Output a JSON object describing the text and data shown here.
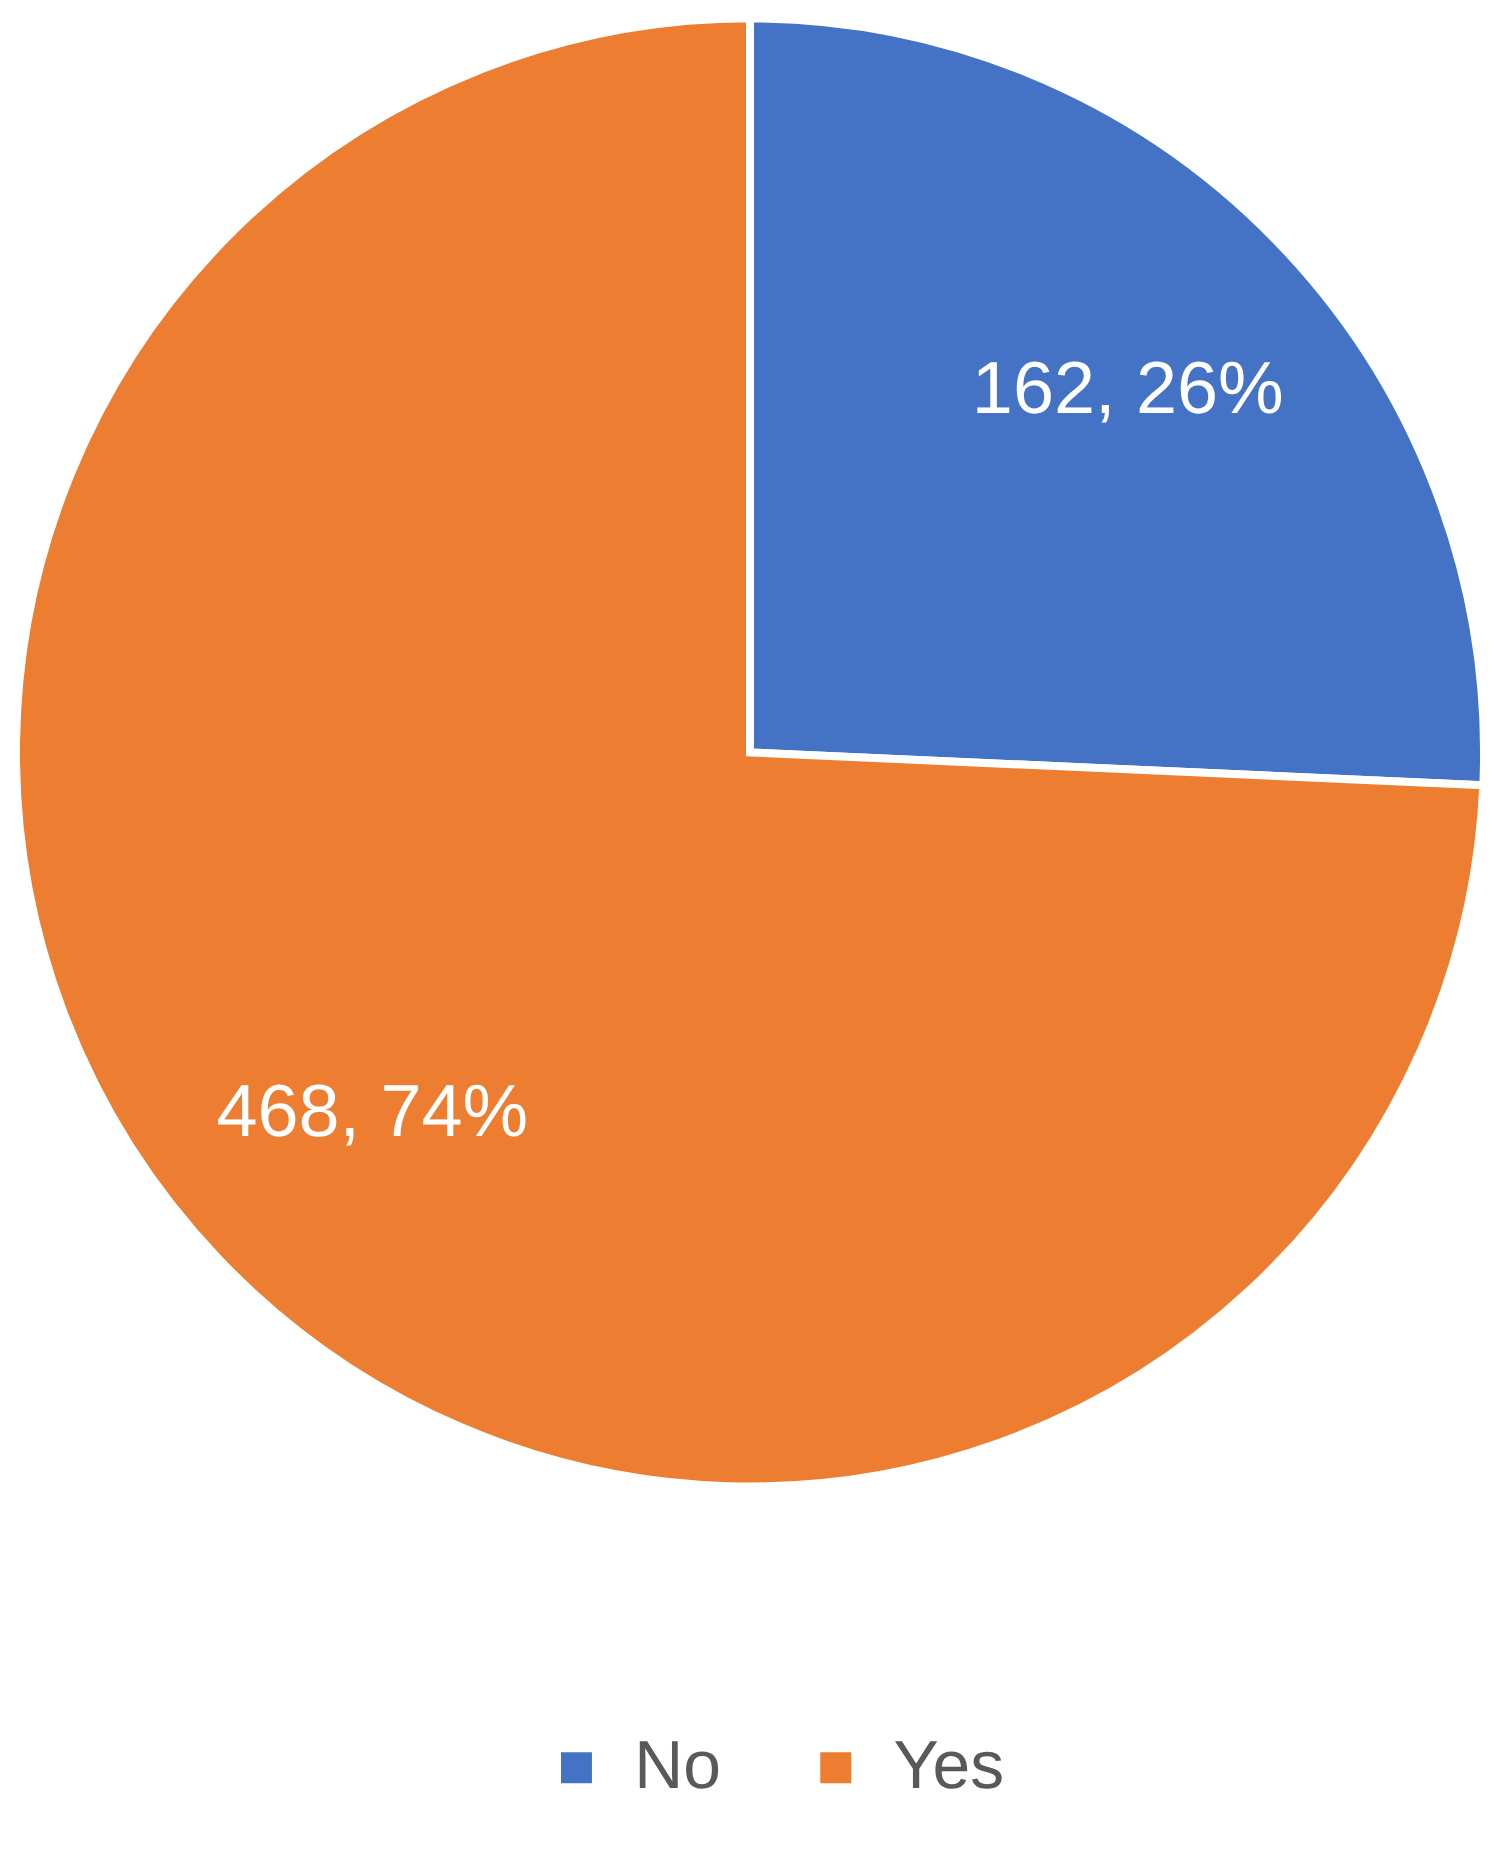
{
  "chart_data": {
    "type": "pie",
    "categories": [
      "No",
      "Yes"
    ],
    "values": [
      162,
      468
    ],
    "colors": [
      "#4472c4",
      "#ed7d31"
    ],
    "value_labels": [
      "162, 26%",
      "468, 74%"
    ],
    "legend": "bottom"
  }
}
